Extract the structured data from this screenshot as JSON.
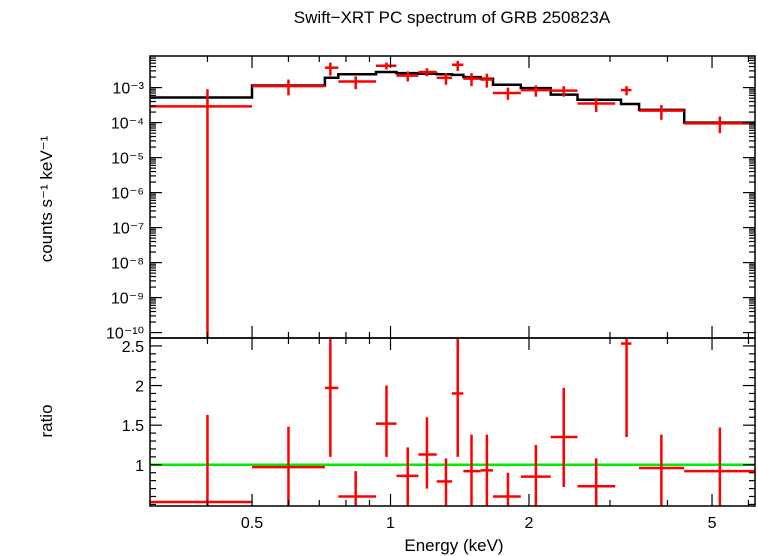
{
  "chart_data": [
    {
      "type": "scatter",
      "panel": "spectrum",
      "title": "Swift−XRT PC spectrum of GRB 250823A",
      "ylabel": "counts s⁻¹ keV⁻¹",
      "xlabel": "",
      "xscale": "log",
      "yscale": "log",
      "xlim": [
        0.3,
        6.2
      ],
      "ylim": [
        7e-11,
        0.008
      ],
      "yticks": [
        {
          "v": 0.001,
          "label": "10⁻³"
        },
        {
          "v": 0.0001,
          "label": "10⁻⁴"
        },
        {
          "v": 1e-05,
          "label": "10⁻⁵"
        },
        {
          "v": 1e-06,
          "label": "10⁻⁶"
        },
        {
          "v": 1e-07,
          "label": "10⁻⁷"
        },
        {
          "v": 1e-08,
          "label": "10⁻⁸"
        },
        {
          "v": 1e-09,
          "label": "10⁻⁹"
        },
        {
          "v": 1e-10,
          "label": "10⁻¹⁰"
        }
      ],
      "series": [
        {
          "kind": "data",
          "color": "#ff0000",
          "points": [
            {
              "x": 0.4,
              "xlo": 0.3,
              "xhi": 0.5,
              "y": 0.00029,
              "ylo": 5e-11,
              "yhi": 0.0009
            },
            {
              "x": 0.6,
              "xlo": 0.5,
              "xhi": 0.72,
              "y": 0.0011,
              "ylo": 0.0006,
              "yhi": 0.0017
            },
            {
              "x": 0.74,
              "xlo": 0.72,
              "xhi": 0.77,
              "y": 0.0037,
              "ylo": 0.0022,
              "yhi": 0.0052
            },
            {
              "x": 0.84,
              "xlo": 0.77,
              "xhi": 0.93,
              "y": 0.0015,
              "ylo": 0.0009,
              "yhi": 0.0021
            },
            {
              "x": 0.98,
              "xlo": 0.93,
              "xhi": 1.03,
              "y": 0.0042,
              "ylo": 0.0033,
              "yhi": 0.0052
            },
            {
              "x": 1.09,
              "xlo": 1.03,
              "xhi": 1.15,
              "y": 0.0022,
              "ylo": 0.0015,
              "yhi": 0.0029
            },
            {
              "x": 1.2,
              "xlo": 1.15,
              "xhi": 1.26,
              "y": 0.0028,
              "ylo": 0.0021,
              "yhi": 0.0036
            },
            {
              "x": 1.32,
              "xlo": 1.26,
              "xhi": 1.36,
              "y": 0.0019,
              "ylo": 0.0012,
              "yhi": 0.0026
            },
            {
              "x": 1.4,
              "xlo": 1.36,
              "xhi": 1.44,
              "y": 0.0045,
              "ylo": 0.003,
              "yhi": 0.0058
            },
            {
              "x": 1.5,
              "xlo": 1.44,
              "xhi": 1.57,
              "y": 0.0018,
              "ylo": 0.0011,
              "yhi": 0.0026
            },
            {
              "x": 1.62,
              "xlo": 1.57,
              "xhi": 1.67,
              "y": 0.0017,
              "ylo": 0.001,
              "yhi": 0.0025
            },
            {
              "x": 1.8,
              "xlo": 1.67,
              "xhi": 1.92,
              "y": 0.0007,
              "ylo": 0.00045,
              "yhi": 0.001
            },
            {
              "x": 2.07,
              "xlo": 1.92,
              "xhi": 2.23,
              "y": 0.00085,
              "ylo": 0.00055,
              "yhi": 0.00115
            },
            {
              "x": 2.38,
              "xlo": 2.23,
              "xhi": 2.55,
              "y": 0.00082,
              "ylo": 0.00055,
              "yhi": 0.0011
            },
            {
              "x": 2.8,
              "xlo": 2.55,
              "xhi": 3.08,
              "y": 0.00035,
              "ylo": 0.0002,
              "yhi": 0.0005
            },
            {
              "x": 3.26,
              "xlo": 3.17,
              "xhi": 3.34,
              "y": 0.00085,
              "ylo": 0.0006,
              "yhi": 0.0011
            },
            {
              "x": 3.88,
              "xlo": 3.47,
              "xhi": 4.35,
              "y": 0.00022,
              "ylo": 0.00012,
              "yhi": 0.00032
            },
            {
              "x": 5.2,
              "xlo": 4.35,
              "xhi": 6.2,
              "y": 9.5e-05,
              "ylo": 5e-05,
              "yhi": 0.00015
            }
          ]
        },
        {
          "kind": "model",
          "color": "#000000",
          "steps": [
            {
              "x0": 0.3,
              "x1": 0.5,
              "y": 0.00052
            },
            {
              "x0": 0.5,
              "x1": 0.72,
              "y": 0.00115
            },
            {
              "x0": 0.72,
              "x1": 0.77,
              "y": 0.0019
            },
            {
              "x0": 0.77,
              "x1": 0.93,
              "y": 0.0024
            },
            {
              "x0": 0.93,
              "x1": 1.03,
              "y": 0.0028
            },
            {
              "x0": 1.03,
              "x1": 1.15,
              "y": 0.0026
            },
            {
              "x0": 1.15,
              "x1": 1.26,
              "y": 0.0025
            },
            {
              "x0": 1.26,
              "x1": 1.36,
              "y": 0.0024
            },
            {
              "x0": 1.36,
              "x1": 1.44,
              "y": 0.0023
            },
            {
              "x0": 1.44,
              "x1": 1.57,
              "y": 0.002
            },
            {
              "x0": 1.57,
              "x1": 1.67,
              "y": 0.0018
            },
            {
              "x0": 1.67,
              "x1": 1.92,
              "y": 0.0012
            },
            {
              "x0": 1.92,
              "x1": 2.23,
              "y": 0.00097
            },
            {
              "x0": 2.23,
              "x1": 2.55,
              "y": 0.00063
            },
            {
              "x0": 2.55,
              "x1": 3.17,
              "y": 0.00045
            },
            {
              "x0": 3.17,
              "x1": 3.47,
              "y": 0.00034
            },
            {
              "x0": 3.47,
              "x1": 4.35,
              "y": 0.00023
            },
            {
              "x0": 4.35,
              "x1": 6.2,
              "y": 0.0001
            }
          ]
        }
      ]
    },
    {
      "type": "scatter",
      "panel": "ratio",
      "title": "",
      "xlabel": "Energy (keV)",
      "ylabel": "ratio",
      "xscale": "log",
      "yscale": "linear",
      "xlim": [
        0.3,
        6.2
      ],
      "ylim": [
        0.48,
        2.6
      ],
      "yticks": [
        {
          "v": 1,
          "label": "1"
        },
        {
          "v": 1.5,
          "label": "1.5"
        },
        {
          "v": 2,
          "label": "2"
        },
        {
          "v": 2.5,
          "label": "2.5"
        }
      ],
      "xticks": [
        {
          "v": 0.5,
          "label": "0.5"
        },
        {
          "v": 1,
          "label": "1"
        },
        {
          "v": 2,
          "label": "2"
        },
        {
          "v": 5,
          "label": "5"
        }
      ],
      "reference_line": {
        "y": 1,
        "color": "#00ee00"
      },
      "series": [
        {
          "kind": "ratio",
          "color": "#ff0000",
          "points": [
            {
              "x": 0.4,
              "xlo": 0.3,
              "xhi": 0.5,
              "y": 0.53,
              "ylo": 0.45,
              "yhi": 1.63
            },
            {
              "x": 0.6,
              "xlo": 0.5,
              "xhi": 0.72,
              "y": 0.97,
              "ylo": 0.45,
              "yhi": 1.48
            },
            {
              "x": 0.74,
              "xlo": 0.72,
              "xhi": 0.77,
              "y": 1.97,
              "ylo": 1.1,
              "yhi": 2.75
            },
            {
              "x": 0.84,
              "xlo": 0.77,
              "xhi": 0.93,
              "y": 0.6,
              "ylo": 0.45,
              "yhi": 0.92
            },
            {
              "x": 0.98,
              "xlo": 0.93,
              "xhi": 1.03,
              "y": 1.52,
              "ylo": 1.1,
              "yhi": 2.0
            },
            {
              "x": 1.09,
              "xlo": 1.03,
              "xhi": 1.15,
              "y": 0.86,
              "ylo": 0.45,
              "yhi": 1.22
            },
            {
              "x": 1.2,
              "xlo": 1.15,
              "xhi": 1.26,
              "y": 1.13,
              "ylo": 0.7,
              "yhi": 1.6
            },
            {
              "x": 1.32,
              "xlo": 1.26,
              "xhi": 1.36,
              "y": 0.79,
              "ylo": 0.45,
              "yhi": 1.08
            },
            {
              "x": 1.4,
              "xlo": 1.36,
              "xhi": 1.44,
              "y": 1.9,
              "ylo": 1.1,
              "yhi": 2.65
            },
            {
              "x": 1.5,
              "xlo": 1.44,
              "xhi": 1.57,
              "y": 0.92,
              "ylo": 0.45,
              "yhi": 1.38
            },
            {
              "x": 1.62,
              "xlo": 1.57,
              "xhi": 1.67,
              "y": 0.93,
              "ylo": 0.45,
              "yhi": 1.38
            },
            {
              "x": 1.8,
              "xlo": 1.67,
              "xhi": 1.92,
              "y": 0.6,
              "ylo": 0.45,
              "yhi": 0.9
            },
            {
              "x": 2.07,
              "xlo": 1.92,
              "xhi": 2.23,
              "y": 0.85,
              "ylo": 0.45,
              "yhi": 1.25
            },
            {
              "x": 2.38,
              "xlo": 2.23,
              "xhi": 2.55,
              "y": 1.35,
              "ylo": 0.72,
              "yhi": 1.97
            },
            {
              "x": 2.8,
              "xlo": 2.55,
              "xhi": 3.08,
              "y": 0.73,
              "ylo": 0.45,
              "yhi": 1.08
            },
            {
              "x": 3.26,
              "xlo": 3.17,
              "xhi": 3.34,
              "y": 2.53,
              "ylo": 1.35,
              "yhi": 2.75
            },
            {
              "x": 3.88,
              "xlo": 3.47,
              "xhi": 4.35,
              "y": 0.96,
              "ylo": 0.45,
              "yhi": 1.38
            },
            {
              "x": 5.2,
              "xlo": 4.35,
              "xhi": 6.2,
              "y": 0.92,
              "ylo": 0.45,
              "yhi": 1.47
            }
          ]
        }
      ]
    }
  ]
}
